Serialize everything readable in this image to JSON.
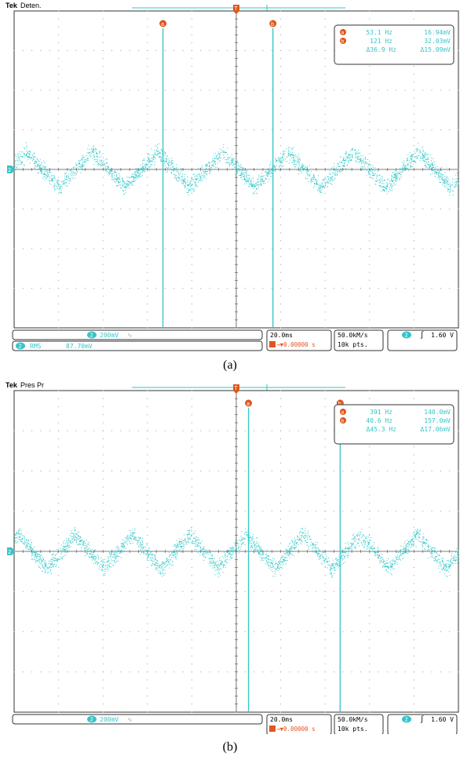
{
  "figures": [
    {
      "caption": "(a)",
      "header_brand": "Tek",
      "header_mode": "Deten.",
      "channel_marker": "2",
      "trigger_marker": "T",
      "cursor_a_marker": "a",
      "cursor_b_marker": "b",
      "cursor_readout": {
        "a": {
          "freq": "53.1 Hz",
          "volt": "16.94mV"
        },
        "b": {
          "freq": "121 Hz",
          "volt": "32.03mV"
        },
        "delta": {
          "freq": "Δ36.9 Hz",
          "volt": "Δ15.09mV"
        }
      },
      "bottom": {
        "channel": "2",
        "scale": "200mV",
        "coupling": "∿",
        "timebase": "20.0ms",
        "trigger_offset": "→▼0.00000 s",
        "sample_rate": "50.0kM/s",
        "record_length": "10k pts.",
        "trigger_channel": "2",
        "trigger_slope": "∫",
        "trigger_level": "1.60 V"
      },
      "measurement": {
        "channel": "2",
        "name": "RMS",
        "value": "87.70mV"
      },
      "waveform": {
        "cycles": 6.8,
        "amplitude_divisions": 0.9,
        "color": "#31c7c7"
      },
      "cursor_a_time_div": -0.6,
      "cursor_b_time_div": 0.3,
      "trigger_time_div": 0.0
    },
    {
      "caption": "(b)",
      "header_brand": "Tek",
      "header_mode": "Pres Pr",
      "channel_marker": "2",
      "trigger_marker": "T",
      "cursor_a_marker": "a",
      "cursor_b_marker": "b",
      "cursor_readout": {
        "a": {
          "freq": "391 Hz",
          "volt": "140.0mV"
        },
        "b": {
          "freq": "40.6 Hz",
          "volt": "157.0mV"
        },
        "delta": {
          "freq": "Δ45.3 Hz",
          "volt": "Δ17.06mV"
        }
      },
      "bottom": {
        "channel": "2",
        "scale": "200mV",
        "coupling": "∿",
        "timebase": "20.0ms",
        "trigger_offset": "→▼0.00000 s",
        "sample_rate": "50.0kM/s",
        "record_length": "10k pts.",
        "trigger_channel": "2",
        "trigger_slope": "∫",
        "trigger_level": "1.60 V"
      },
      "measurement": null,
      "waveform": {
        "cycles": 7.8,
        "amplitude_divisions": 0.85,
        "color": "#31c7c7"
      },
      "cursor_a_time_div": 0.1,
      "cursor_b_time_div": 0.85,
      "trigger_time_div": 0.0
    }
  ]
}
